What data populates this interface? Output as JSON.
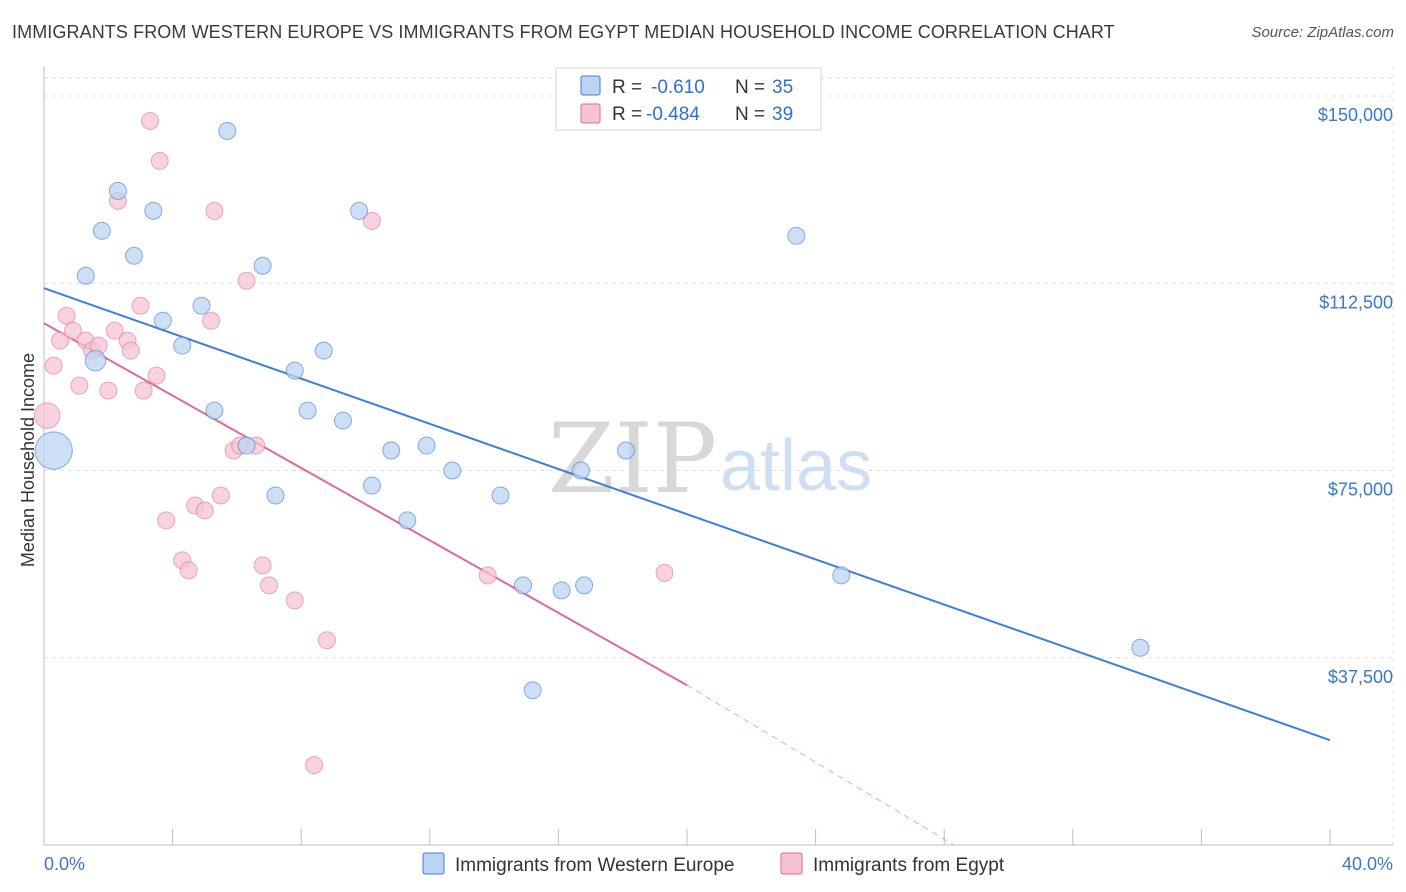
{
  "title": "IMMIGRANTS FROM WESTERN EUROPE VS IMMIGRANTS FROM EGYPT MEDIAN HOUSEHOLD INCOME CORRELATION CHART",
  "source": "Source: ZipAtlas.com",
  "colors": {
    "blue": "#3d7fd6",
    "blue_fill": "#bcd4f2",
    "pink": "#e06a95",
    "pink_fill": "#f6c3d3",
    "grid": "#dddddd",
    "axis_text": "#3b78c5"
  },
  "watermark": {
    "zip": "ZIP",
    "atlas": "atlas"
  },
  "stats": {
    "r_label": "R =",
    "n_label": "N =",
    "series1": {
      "r": "-0.610",
      "n": "35"
    },
    "series2": {
      "r": "-0.484",
      "n": "39"
    }
  },
  "chart_data": {
    "type": "scatter",
    "title": "IMMIGRANTS FROM WESTERN EUROPE VS IMMIGRANTS FROM EGYPT MEDIAN HOUSEHOLD INCOME CORRELATION CHART",
    "xlabel": "",
    "ylabel": "Median Household Income",
    "xlim": [
      0,
      40
    ],
    "ylim": [
      0,
      157000
    ],
    "x_tick_labels": [
      "0.0%",
      "40.0%"
    ],
    "y_ticks": [
      37500,
      75000,
      112500,
      150000
    ],
    "y_tick_labels": [
      "$37,500",
      "$75,000",
      "$112,500",
      "$150,000"
    ],
    "legend_position": "bottom-center",
    "series": [
      {
        "name": "Immigrants from Western Europe",
        "color": "#3d7fd6",
        "points": [
          [
            0.3,
            79000,
            2.2
          ],
          [
            1.6,
            97000,
            1.2
          ],
          [
            1.3,
            114000,
            1
          ],
          [
            1.8,
            123000,
            1
          ],
          [
            2.3,
            131000,
            1
          ],
          [
            2.8,
            118000,
            1
          ],
          [
            3.4,
            127000,
            1
          ],
          [
            3.7,
            105000,
            1
          ],
          [
            4.3,
            100000,
            1
          ],
          [
            4.9,
            108000,
            1
          ],
          [
            5.3,
            87000,
            1
          ],
          [
            5.7,
            143000,
            1
          ],
          [
            6.3,
            80000,
            1
          ],
          [
            6.8,
            116000,
            1
          ],
          [
            7.2,
            70000,
            1
          ],
          [
            7.8,
            95000,
            1
          ],
          [
            8.2,
            87000,
            1
          ],
          [
            8.7,
            99000,
            1
          ],
          [
            9.3,
            85000,
            1
          ],
          [
            9.8,
            127000,
            1
          ],
          [
            10.2,
            72000,
            1
          ],
          [
            10.8,
            79000,
            1
          ],
          [
            11.3,
            65000,
            1
          ],
          [
            11.9,
            80000,
            1
          ],
          [
            12.7,
            75000,
            1
          ],
          [
            14.2,
            70000,
            1
          ],
          [
            14.9,
            52000,
            1
          ],
          [
            15.2,
            31000,
            1
          ],
          [
            16.1,
            51000,
            1
          ],
          [
            16.8,
            52000,
            1
          ],
          [
            16.7,
            75000,
            1
          ],
          [
            18.1,
            79000,
            1
          ],
          [
            23.4,
            122000,
            1
          ],
          [
            24.8,
            54000,
            1
          ],
          [
            34.1,
            39500,
            1
          ]
        ],
        "trend": {
          "x1": 0,
          "y1": 111500,
          "x2": 40,
          "y2": 21000
        }
      },
      {
        "name": "Immigrants from Egypt",
        "color": "#e06a95",
        "points": [
          [
            0.1,
            86000,
            1.5
          ],
          [
            0.3,
            96000,
            1
          ],
          [
            0.5,
            101000,
            1
          ],
          [
            0.7,
            106000,
            1
          ],
          [
            0.9,
            103000,
            1
          ],
          [
            1.1,
            92000,
            1
          ],
          [
            1.3,
            101000,
            1
          ],
          [
            1.5,
            99000,
            1
          ],
          [
            1.7,
            100000,
            1
          ],
          [
            2.0,
            91000,
            1
          ],
          [
            2.2,
            103000,
            1
          ],
          [
            2.3,
            129000,
            1
          ],
          [
            2.6,
            101000,
            1
          ],
          [
            2.7,
            99000,
            1
          ],
          [
            3.0,
            108000,
            1
          ],
          [
            3.1,
            91000,
            1
          ],
          [
            3.3,
            145000,
            1
          ],
          [
            3.5,
            94000,
            1
          ],
          [
            3.6,
            137000,
            1
          ],
          [
            3.8,
            65000,
            1
          ],
          [
            4.3,
            57000,
            1
          ],
          [
            4.5,
            55000,
            1
          ],
          [
            4.7,
            68000,
            1
          ],
          [
            5.0,
            67000,
            1
          ],
          [
            5.2,
            105000,
            1
          ],
          [
            5.3,
            127000,
            1
          ],
          [
            5.5,
            70000,
            1
          ],
          [
            5.9,
            79000,
            1
          ],
          [
            6.1,
            80000,
            1
          ],
          [
            6.3,
            113000,
            1
          ],
          [
            6.6,
            80000,
            1
          ],
          [
            6.8,
            56000,
            1
          ],
          [
            7.0,
            52000,
            1
          ],
          [
            7.8,
            49000,
            1
          ],
          [
            8.4,
            16000,
            1
          ],
          [
            8.8,
            41000,
            1
          ],
          [
            10.2,
            125000,
            1
          ],
          [
            13.8,
            54000,
            1
          ],
          [
            19.3,
            54500,
            1
          ]
        ],
        "trend": {
          "x1": 0,
          "y1": 104500,
          "x2": 20,
          "y2": 32000
        },
        "trend_dashed": {
          "x1": 20,
          "y1": 32000,
          "x2": 28.3,
          "y2": 0
        }
      }
    ]
  }
}
